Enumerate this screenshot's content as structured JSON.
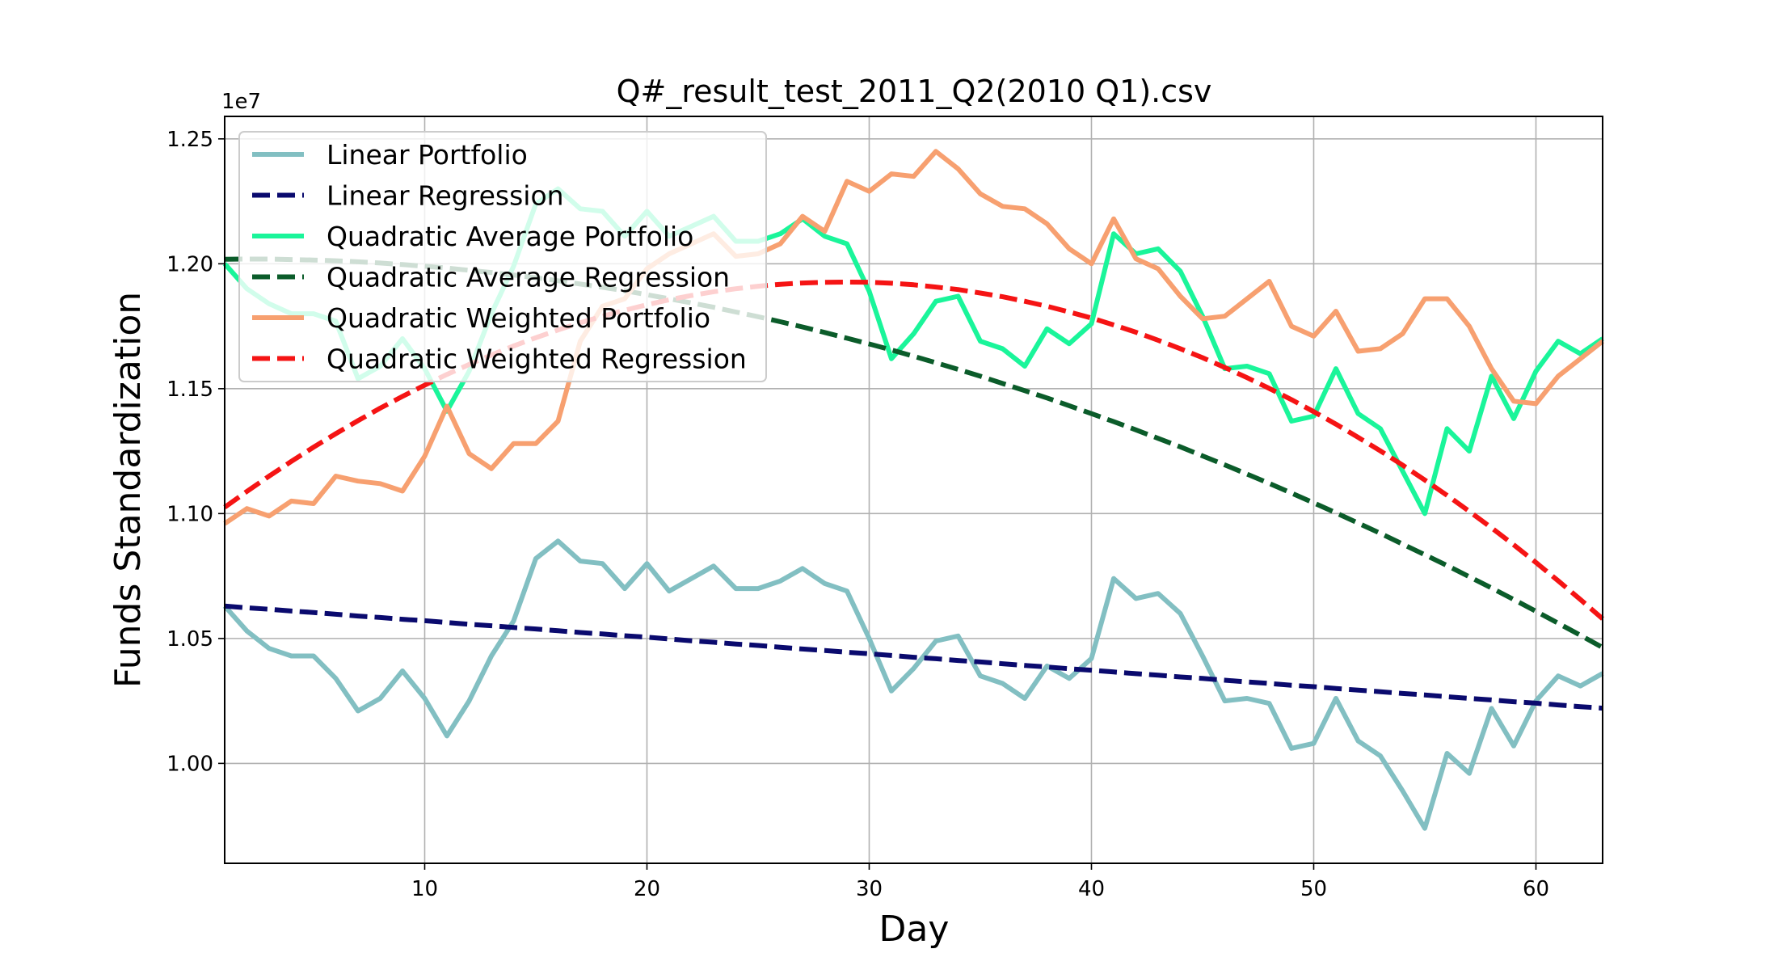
{
  "chart_data": {
    "type": "line",
    "title": "Q#_result_test_2011_Q2(2010 Q1).csv",
    "xlabel": "Day",
    "ylabel": "Funds Standardization",
    "y_offset_label": "1e7",
    "xlim": [
      1,
      63
    ],
    "ylim": [
      0.96,
      1.259
    ],
    "x_ticks": [
      10,
      20,
      30,
      40,
      50,
      60
    ],
    "y_ticks": [
      1.0,
      1.05,
      1.1,
      1.15,
      1.2,
      1.25
    ],
    "y_tick_labels": [
      "1.00",
      "1.05",
      "1.10",
      "1.15",
      "1.20",
      "1.25"
    ],
    "grid": true,
    "legend_position": "upper left",
    "x": [
      1,
      2,
      3,
      4,
      5,
      6,
      7,
      8,
      9,
      10,
      11,
      12,
      13,
      14,
      15,
      16,
      17,
      18,
      19,
      20,
      21,
      22,
      23,
      24,
      25,
      26,
      27,
      28,
      29,
      30,
      31,
      32,
      33,
      34,
      35,
      36,
      37,
      38,
      39,
      40,
      41,
      42,
      43,
      44,
      45,
      46,
      47,
      48,
      49,
      50,
      51,
      52,
      53,
      54,
      55,
      56,
      57,
      58,
      59,
      60,
      61,
      62,
      63
    ],
    "series": [
      {
        "name": "Linear Portfolio",
        "color": "#82bfc2",
        "style": "solid",
        "values": [
          1.063,
          1.053,
          1.046,
          1.043,
          1.043,
          1.034,
          1.021,
          1.026,
          1.037,
          1.026,
          1.011,
          1.025,
          1.043,
          1.057,
          1.082,
          1.089,
          1.081,
          1.08,
          1.07,
          1.08,
          1.069,
          1.074,
          1.079,
          1.07,
          1.07,
          1.073,
          1.078,
          1.072,
          1.069,
          1.05,
          1.029,
          1.038,
          1.049,
          1.051,
          1.035,
          1.032,
          1.026,
          1.039,
          1.034,
          1.042,
          1.074,
          1.066,
          1.068,
          1.06,
          1.043,
          1.025,
          1.026,
          1.024,
          1.006,
          1.008,
          1.026,
          1.009,
          1.003,
          0.989,
          0.974,
          1.004,
          0.996,
          1.022,
          1.007,
          1.025,
          1.035,
          1.031,
          1.036
        ]
      },
      {
        "name": "Linear Regression",
        "color": "#0a0a6e",
        "style": "dashed",
        "values": [
          1.063,
          1.0623,
          1.0617,
          1.061,
          1.0604,
          1.0597,
          1.059,
          1.0584,
          1.0577,
          1.0571,
          1.0564,
          1.0557,
          1.0551,
          1.0544,
          1.0538,
          1.0531,
          1.0524,
          1.0518,
          1.0511,
          1.0505,
          1.0498,
          1.0491,
          1.0485,
          1.0478,
          1.0472,
          1.0465,
          1.0458,
          1.0452,
          1.0445,
          1.0439,
          1.0432,
          1.0425,
          1.0419,
          1.0412,
          1.0406,
          1.0399,
          1.0392,
          1.0386,
          1.0379,
          1.0373,
          1.0366,
          1.0359,
          1.0353,
          1.0346,
          1.034,
          1.0333,
          1.0326,
          1.032,
          1.0313,
          1.0307,
          1.03,
          1.0293,
          1.0287,
          1.028,
          1.0274,
          1.0267,
          1.026,
          1.0254,
          1.0247,
          1.0241,
          1.0234,
          1.0227,
          1.0221
        ]
      },
      {
        "name": "Quadratic Average Portfolio",
        "color": "#1af59a",
        "style": "solid",
        "values": [
          1.2,
          1.19,
          1.184,
          1.18,
          1.18,
          1.177,
          1.154,
          1.159,
          1.17,
          1.158,
          1.141,
          1.157,
          1.18,
          1.199,
          1.224,
          1.23,
          1.222,
          1.221,
          1.211,
          1.221,
          1.211,
          1.215,
          1.219,
          1.209,
          1.209,
          1.212,
          1.218,
          1.211,
          1.208,
          1.189,
          1.162,
          1.172,
          1.185,
          1.187,
          1.169,
          1.166,
          1.159,
          1.174,
          1.168,
          1.176,
          1.212,
          1.204,
          1.206,
          1.197,
          1.179,
          1.158,
          1.159,
          1.156,
          1.137,
          1.139,
          1.158,
          1.14,
          1.134,
          1.117,
          1.1,
          1.134,
          1.125,
          1.155,
          1.138,
          1.157,
          1.169,
          1.164,
          1.17
        ]
      },
      {
        "name": "Quadratic Average Regression",
        "color": "#0b5c2a",
        "style": "dashed",
        "values": [
          1.2018,
          1.2019,
          1.2019,
          1.2017,
          1.2015,
          1.2012,
          1.2008,
          1.2003,
          1.1997,
          1.199,
          1.1983,
          1.1974,
          1.1965,
          1.1955,
          1.1944,
          1.1932,
          1.1919,
          1.1906,
          1.1892,
          1.1876,
          1.186,
          1.1843,
          1.1826,
          1.1807,
          1.1788,
          1.1768,
          1.1747,
          1.1725,
          1.1702,
          1.1679,
          1.1655,
          1.163,
          1.1604,
          1.1577,
          1.155,
          1.1521,
          1.1492,
          1.1463,
          1.1432,
          1.14,
          1.1368,
          1.1335,
          1.1301,
          1.1267,
          1.1231,
          1.1195,
          1.1158,
          1.1121,
          1.1082,
          1.1043,
          1.1003,
          1.0962,
          1.0921,
          1.0878,
          1.0835,
          1.0792,
          1.0747,
          1.0702,
          1.0656,
          1.0609,
          1.0561,
          1.0513,
          1.0464
        ]
      },
      {
        "name": "Quadratic Weighted Portfolio",
        "color": "#f7a070",
        "style": "solid",
        "values": [
          1.096,
          1.102,
          1.099,
          1.105,
          1.104,
          1.115,
          1.113,
          1.112,
          1.109,
          1.123,
          1.143,
          1.124,
          1.118,
          1.128,
          1.128,
          1.137,
          1.169,
          1.183,
          1.186,
          1.198,
          1.204,
          1.208,
          1.212,
          1.203,
          1.204,
          1.208,
          1.219,
          1.213,
          1.233,
          1.229,
          1.236,
          1.235,
          1.245,
          1.238,
          1.228,
          1.223,
          1.222,
          1.216,
          1.206,
          1.2,
          1.218,
          1.202,
          1.198,
          1.187,
          1.178,
          1.179,
          1.186,
          1.193,
          1.175,
          1.171,
          1.181,
          1.165,
          1.166,
          1.172,
          1.186,
          1.186,
          1.175,
          1.158,
          1.145,
          1.144,
          1.155,
          1.162,
          1.169
        ]
      },
      {
        "name": "Quadratic Weighted Regression",
        "color": "#f51414",
        "style": "dashed",
        "values": [
          1.1025,
          1.1089,
          1.115,
          1.1209,
          1.1266,
          1.132,
          1.1372,
          1.1422,
          1.1469,
          1.1514,
          1.1557,
          1.1597,
          1.1635,
          1.1671,
          1.1704,
          1.1735,
          1.1764,
          1.179,
          1.1814,
          1.1836,
          1.1856,
          1.1873,
          1.1888,
          1.19,
          1.191,
          1.1918,
          1.1923,
          1.1926,
          1.1927,
          1.1926,
          1.1922,
          1.1916,
          1.1907,
          1.1897,
          1.1883,
          1.1868,
          1.185,
          1.183,
          1.1807,
          1.1783,
          1.1755,
          1.1726,
          1.1694,
          1.166,
          1.1624,
          1.1585,
          1.1544,
          1.1501,
          1.1456,
          1.1408,
          1.1358,
          1.1305,
          1.1251,
          1.1194,
          1.1134,
          1.1073,
          1.1009,
          1.0943,
          1.0875,
          1.0804,
          1.0731,
          1.0656,
          1.0579
        ]
      }
    ]
  }
}
